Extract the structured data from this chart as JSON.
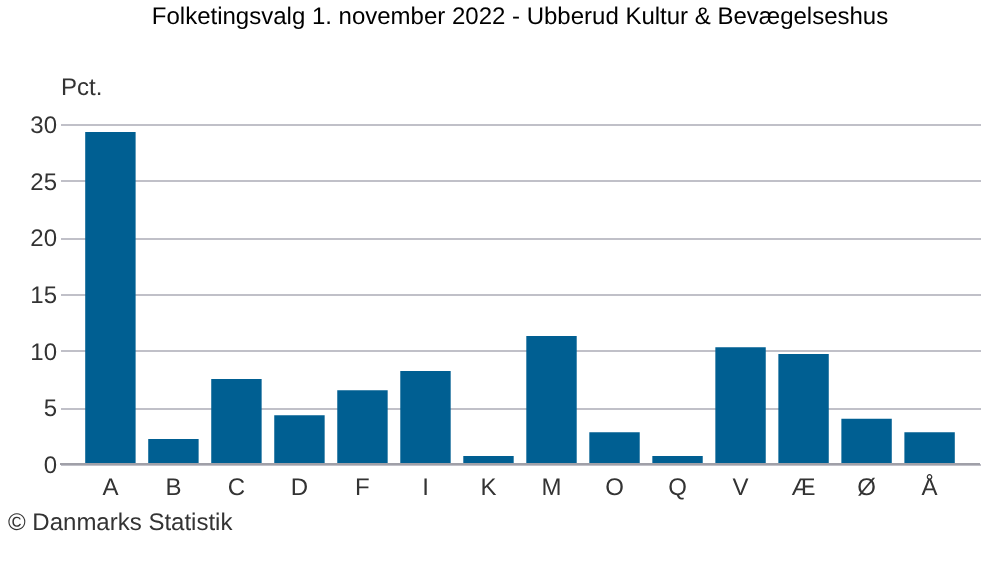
{
  "chart_data": {
    "type": "bar",
    "title": "Folketingsvalg 1. november 2022 - Ubberud Kultur & Bevægelseshus",
    "ylabel": "Pct.",
    "categories": [
      "A",
      "B",
      "C",
      "D",
      "F",
      "I",
      "K",
      "M",
      "O",
      "Q",
      "V",
      "Æ",
      "Ø",
      "Å"
    ],
    "values": [
      29.3,
      2.2,
      7.5,
      4.3,
      6.5,
      8.2,
      0.7,
      11.3,
      2.8,
      0.7,
      10.3,
      9.7,
      4.0,
      2.8
    ],
    "color": "#005f92",
    "ylim": [
      0,
      30
    ],
    "yticks": [
      0,
      5,
      10,
      15,
      20,
      25,
      30
    ],
    "grid": "y",
    "annotations": [
      "© Danmarks Statistik"
    ]
  }
}
